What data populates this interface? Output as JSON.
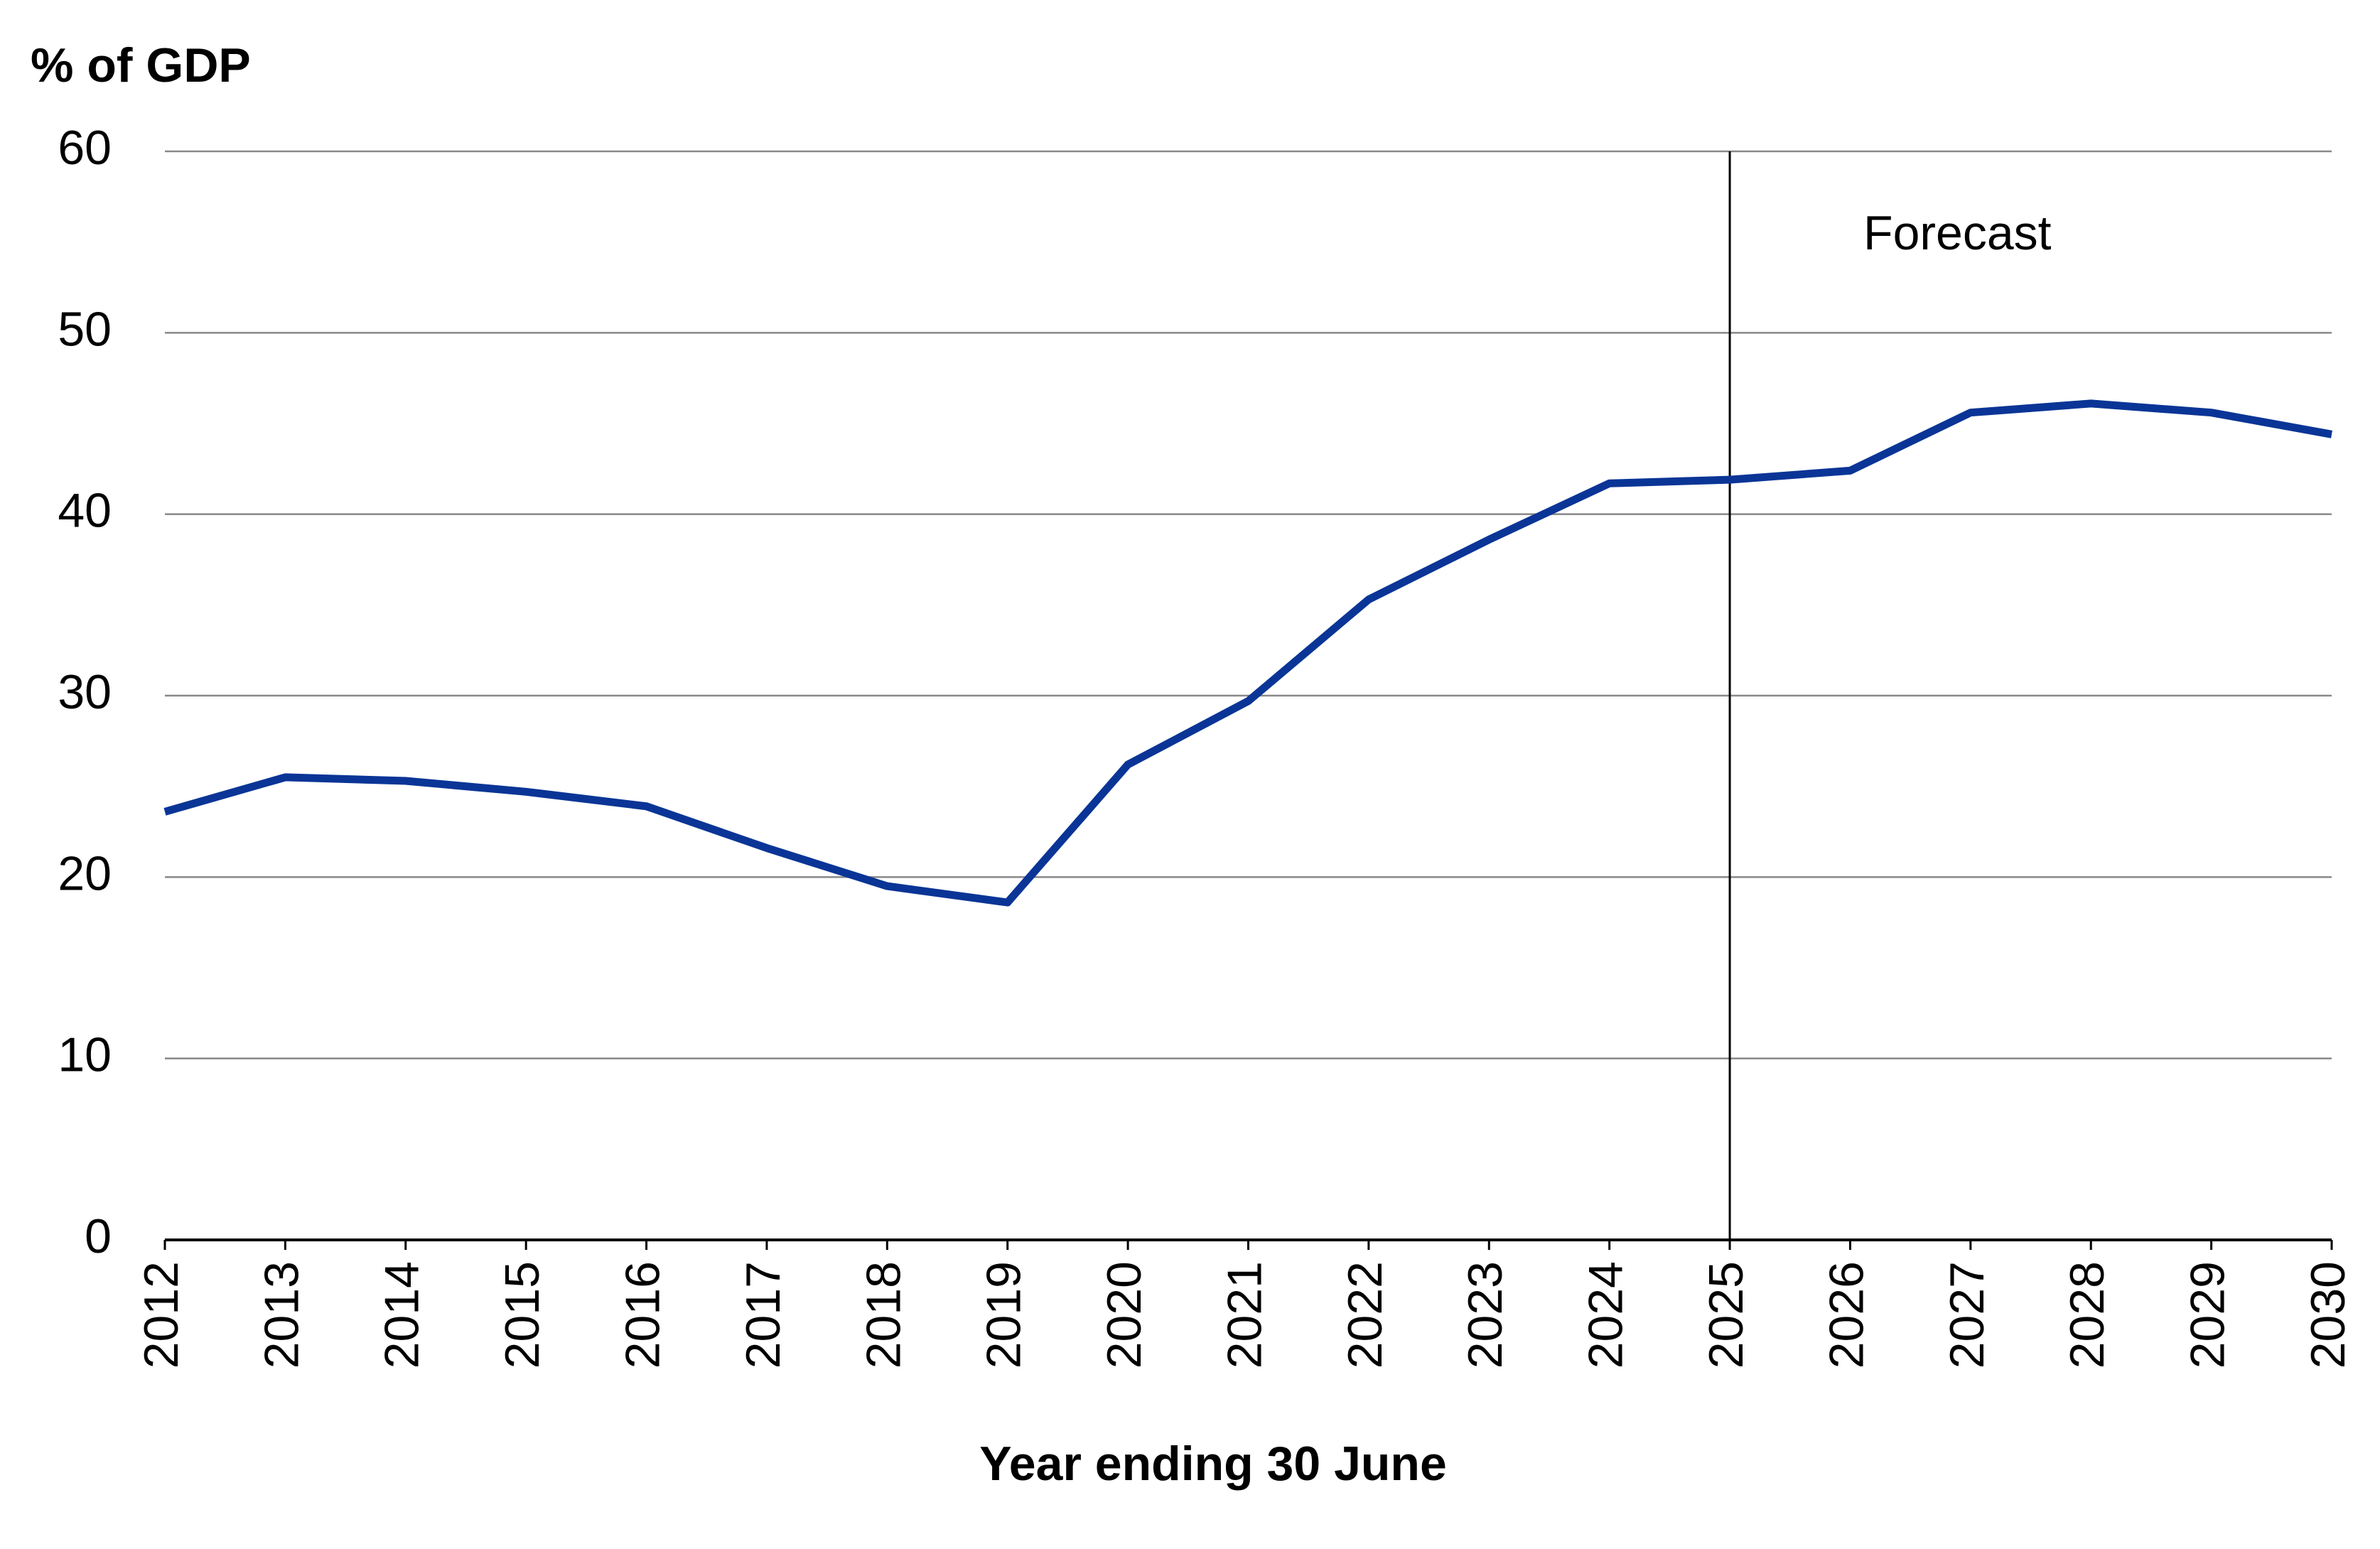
{
  "chart_data": {
    "type": "line",
    "title": "% of GDP",
    "x_label": "Year ending 30 June",
    "x": [
      2012,
      2013,
      2014,
      2015,
      2016,
      2017,
      2018,
      2019,
      2020,
      2021,
      2022,
      2023,
      2024,
      2025,
      2026,
      2027,
      2028,
      2029,
      2030
    ],
    "series": [
      {
        "color": "#0a3596",
        "values": [
          23.6,
          25.5,
          25.3,
          24.7,
          23.9,
          21.6,
          19.5,
          18.6,
          26.2,
          29.7,
          35.3,
          38.6,
          41.7,
          41.9,
          42.4,
          45.6,
          46.1,
          45.6,
          44.4
        ]
      }
    ],
    "xlim": [
      2012,
      2030
    ],
    "xticks": [
      2012,
      2013,
      2014,
      2015,
      2016,
      2017,
      2018,
      2019,
      2020,
      2021,
      2022,
      2023,
      2024,
      2025,
      2026,
      2027,
      2028,
      2029,
      2030
    ],
    "ylim": [
      0,
      60
    ],
    "yticks": [
      0,
      10,
      20,
      30,
      40,
      50,
      60
    ],
    "grid": true,
    "annotations": [
      {
        "text": "Forecast",
        "x": 2025
      }
    ]
  }
}
